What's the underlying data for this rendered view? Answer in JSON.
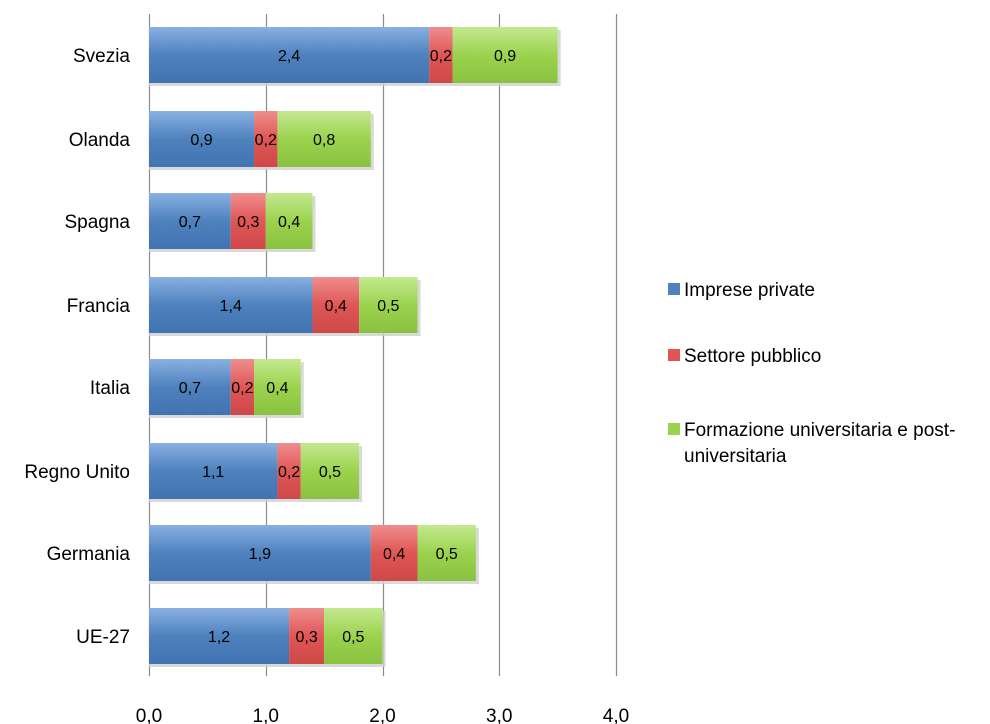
{
  "chart_data": {
    "type": "bar",
    "orientation": "horizontal",
    "stacked": true,
    "categories": [
      "Svezia",
      "Olanda",
      "Spagna",
      "Francia",
      "Italia",
      "Regno Unito",
      "Germania",
      "UE-27"
    ],
    "series": [
      {
        "name": "Imprese private",
        "color": "#4f81bd",
        "values": [
          2.4,
          0.9,
          0.7,
          1.4,
          0.7,
          1.1,
          1.9,
          1.2
        ],
        "labels": [
          "2,4",
          "0,9",
          "0,7",
          "1,4",
          "0,7",
          "1,1",
          "1,9",
          "1,2"
        ]
      },
      {
        "name": "Settore pubblico",
        "color": "#e05656",
        "values": [
          0.2,
          0.2,
          0.3,
          0.4,
          0.2,
          0.2,
          0.4,
          0.3
        ],
        "labels": [
          "0,2",
          "0,2",
          "0,3",
          "0,4",
          "0,2",
          "0,2",
          "0,4",
          "0,3"
        ]
      },
      {
        "name": "Formazione universitaria e post-universitaria",
        "color": "#9bd34f",
        "values": [
          0.9,
          0.8,
          0.4,
          0.5,
          0.4,
          0.5,
          0.5,
          0.5
        ],
        "labels": [
          "0,9",
          "0,8",
          "0,4",
          "0,5",
          "0,4",
          "0,5",
          "0,5",
          "0,5"
        ]
      }
    ],
    "xlim": [
      0,
      4
    ],
    "xticks": [
      0,
      1,
      2,
      3,
      4
    ],
    "xtick_labels": [
      "0,0",
      "1,0",
      "2,0",
      "3,0",
      "4,0"
    ],
    "grid": true,
    "legend": {
      "position": "right",
      "entries": [
        {
          "lines": [
            "Imprese private"
          ]
        },
        {
          "lines": [
            "Settore pubblico"
          ]
        },
        {
          "lines": [
            "Formazione universitaria e post-",
            "universitaria"
          ]
        }
      ]
    }
  }
}
